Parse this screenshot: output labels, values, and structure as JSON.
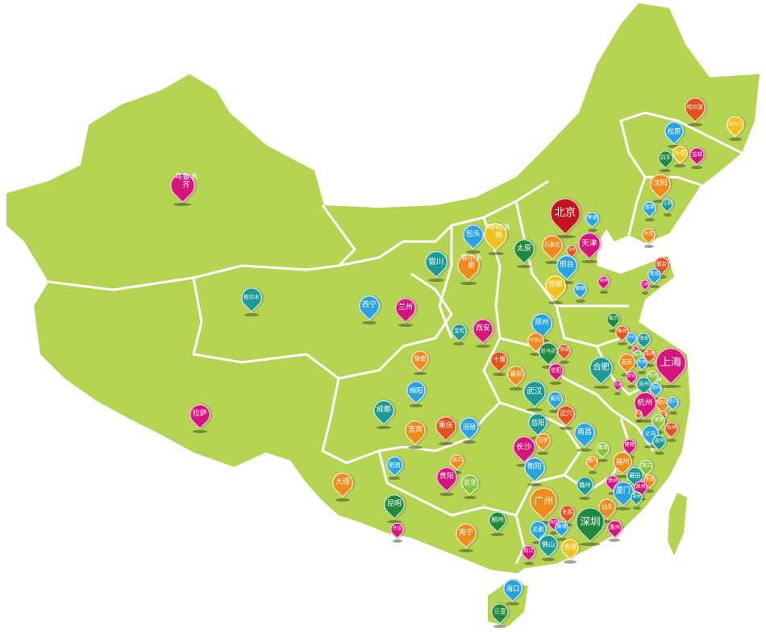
{
  "map": {
    "land_color": "#b5d452",
    "border_color": "#ffffff",
    "palette": {
      "red": "#c0151d",
      "magenta": "#d5157c",
      "orange": "#ee8c1b",
      "yellow": "#f2c21c",
      "blue": "#29a3e0",
      "teal": "#1c9a95",
      "green": "#1f8a3c",
      "lightgreen": "#8cc43f",
      "orangered": "#e3541d"
    },
    "pins": [
      {
        "label": "乌鲁木齐",
        "color": "magenta"
      },
      {
        "label": "格尔木",
        "color": "teal"
      },
      {
        "label": "拉萨",
        "color": "magenta"
      },
      {
        "label": "西宁",
        "color": "blue"
      },
      {
        "label": "兰州",
        "color": "magenta"
      },
      {
        "label": "银川",
        "color": "teal"
      },
      {
        "label": "包头",
        "color": "blue"
      },
      {
        "label": "呼和浩特",
        "color": "yellow"
      },
      {
        "label": "鄂尔多斯",
        "color": "orange"
      },
      {
        "label": "太原",
        "color": "green"
      },
      {
        "label": "北京",
        "color": "red"
      },
      {
        "label": "承德",
        "color": "blue"
      },
      {
        "label": "石家庄",
        "color": "orange"
      },
      {
        "label": "沧州",
        "color": "orangered"
      },
      {
        "label": "天津",
        "color": "magenta"
      },
      {
        "label": "邢台",
        "color": "blue"
      },
      {
        "label": "邯郸",
        "color": "yellow"
      },
      {
        "label": "聊城",
        "color": "blue"
      },
      {
        "label": "滨州",
        "color": "magenta"
      },
      {
        "label": "郑州",
        "color": "blue"
      },
      {
        "label": "平顶山",
        "color": "orange"
      },
      {
        "label": "驻马店",
        "color": "green"
      },
      {
        "label": "项城",
        "color": "orangered"
      },
      {
        "label": "信阳",
        "color": "magenta"
      },
      {
        "label": "合肥",
        "color": "teal"
      },
      {
        "label": "临沂",
        "color": "green"
      },
      {
        "label": "泰州",
        "color": "orangered"
      },
      {
        "label": "兴化",
        "color": "blue"
      },
      {
        "label": "海安",
        "color": "teal"
      },
      {
        "label": "镇江",
        "color": "magenta"
      },
      {
        "label": "泰兴",
        "color": "lightgreen"
      },
      {
        "label": "南通",
        "color": "orangered"
      },
      {
        "label": "南京",
        "color": "orange"
      },
      {
        "label": "丹阳",
        "color": "blue"
      },
      {
        "label": "上海",
        "color": "magenta"
      },
      {
        "label": "宣城",
        "color": "magenta"
      },
      {
        "label": "芜湖",
        "color": "magenta"
      },
      {
        "label": "常州",
        "color": "lightgreen"
      },
      {
        "label": "苏州",
        "color": "teal"
      },
      {
        "label": "湖州",
        "color": "blue"
      },
      {
        "label": "杭州",
        "color": "magenta"
      },
      {
        "label": "绍兴",
        "color": "orange"
      },
      {
        "label": "嘉兴",
        "color": "blue"
      },
      {
        "label": "德清",
        "color": "orangered"
      },
      {
        "label": "宁波",
        "color": "orangered"
      },
      {
        "label": "诸暨",
        "color": "lightgreen"
      },
      {
        "label": "台州",
        "color": "orangered"
      },
      {
        "label": "义乌",
        "color": "blue"
      },
      {
        "label": "温州",
        "color": "teal"
      },
      {
        "label": "西安",
        "color": "magenta"
      },
      {
        "label": "宝鸡",
        "color": "teal"
      },
      {
        "label": "十堰",
        "color": "orangered"
      },
      {
        "label": "襄阳",
        "color": "orange"
      },
      {
        "label": "陇南",
        "color": "orange"
      },
      {
        "label": "绵阳",
        "color": "blue"
      },
      {
        "label": "成都",
        "color": "teal"
      },
      {
        "label": "宜宾",
        "color": "orange"
      },
      {
        "label": "重庆",
        "color": "orangered"
      },
      {
        "label": "涪陵",
        "color": "blue"
      },
      {
        "label": "昭通",
        "color": "blue"
      },
      {
        "label": "遵义",
        "color": "orange"
      },
      {
        "label": "贵阳",
        "color": "magenta"
      },
      {
        "label": "凯里",
        "color": "lightgreen"
      },
      {
        "label": "大理",
        "color": "orange"
      },
      {
        "label": "昆明",
        "color": "green"
      },
      {
        "label": "开远",
        "color": "magenta"
      },
      {
        "label": "武汉",
        "color": "teal"
      },
      {
        "label": "黄冈",
        "color": "blue"
      },
      {
        "label": "武穴",
        "color": "orangered"
      },
      {
        "label": "岳阳",
        "color": "teal"
      },
      {
        "label": "汨罗",
        "color": "orange"
      },
      {
        "label": "长沙",
        "color": "magenta"
      },
      {
        "label": "衡阳",
        "color": "blue"
      },
      {
        "label": "南昌",
        "color": "blue"
      },
      {
        "label": "鹰潭",
        "color": "lightgreen"
      },
      {
        "label": "黎川",
        "color": "orange"
      },
      {
        "label": "赣州",
        "color": "teal"
      },
      {
        "label": "建瓯",
        "color": "magenta"
      },
      {
        "label": "福州",
        "color": "orange"
      },
      {
        "label": "莆田",
        "color": "teal"
      },
      {
        "label": "浦江",
        "color": "lightgreen"
      },
      {
        "label": "安溪",
        "color": "orange"
      },
      {
        "label": "漳州",
        "color": "magenta"
      },
      {
        "label": "厦门",
        "color": "blue"
      },
      {
        "label": "泉州",
        "color": "magenta"
      },
      {
        "label": "南安",
        "color": "teal"
      },
      {
        "label": "汕头",
        "color": "orange"
      },
      {
        "label": "惠州",
        "color": "magenta"
      },
      {
        "label": "深圳",
        "color": "green"
      },
      {
        "label": "东莞",
        "color": "orangered"
      },
      {
        "label": "广州",
        "color": "orange"
      },
      {
        "label": "花都",
        "color": "blue"
      },
      {
        "label": "清远",
        "color": "magenta"
      },
      {
        "label": "黄埔",
        "color": "blue"
      },
      {
        "label": "佛山",
        "color": "teal"
      },
      {
        "label": "香港",
        "color": "yellow"
      },
      {
        "label": "阳江",
        "color": "magenta"
      },
      {
        "label": "柳州",
        "color": "green"
      },
      {
        "label": "南宁",
        "color": "orange"
      },
      {
        "label": "海口",
        "color": "blue"
      },
      {
        "label": "三亚",
        "color": "green"
      },
      {
        "label": "哈尔滨",
        "color": "orangered"
      },
      {
        "label": "牡丹江",
        "color": "yellow"
      },
      {
        "label": "松原",
        "color": "blue"
      },
      {
        "label": "四平",
        "color": "green"
      },
      {
        "label": "长春",
        "color": "yellow"
      },
      {
        "label": "吉林",
        "color": "magenta"
      },
      {
        "label": "沈阳",
        "color": "orange"
      },
      {
        "label": "辽阳",
        "color": "teal"
      },
      {
        "label": "盘锦",
        "color": "blue"
      },
      {
        "label": "大连",
        "color": "orange"
      },
      {
        "label": "烟台",
        "color": "orangered"
      },
      {
        "label": "青岛",
        "color": "blue"
      },
      {
        "label": "日照",
        "color": "magenta"
      }
    ]
  }
}
